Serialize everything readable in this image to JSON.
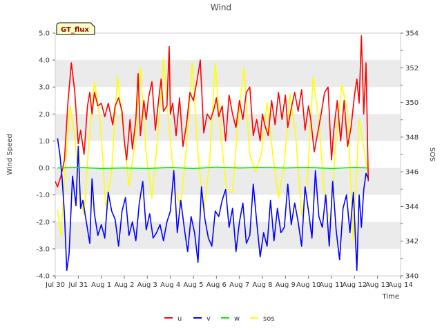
{
  "chart_data": {
    "type": "line",
    "title": "Wind",
    "badge": "GT_flux",
    "xlabel": "Time",
    "ylabel": "Wind Speed",
    "y2label": "SOS",
    "x_tick_labels": [
      "Jul 30",
      "Jul 31",
      "Aug 1",
      "Aug 2",
      "Aug 3",
      "Aug 4",
      "Aug 5",
      "Aug 6",
      "Aug 7",
      "Aug 8",
      "Aug 9",
      "Aug 10",
      "Aug 11",
      "Aug 12",
      "Aug 13",
      "Aug 14"
    ],
    "xlim": [
      0,
      15
    ],
    "ylim": [
      -4.0,
      5.0
    ],
    "y_ticks": [
      "-4.0",
      "-3.0",
      "-2.0",
      "-1.0",
      "0.0",
      "1.0",
      "2.0",
      "3.0",
      "4.0",
      "5.0"
    ],
    "y2lim": [
      340,
      354
    ],
    "y2_ticks": [
      "340",
      "342",
      "344",
      "346",
      "348",
      "350",
      "352",
      "354"
    ],
    "grid": "horizontal bands",
    "legend_position": "bottom-center",
    "colors": {
      "u": "#ff0000",
      "v": "#0000ff",
      "w": "#00ee00",
      "sos": "#ffff00",
      "band": "#ebebeb"
    },
    "series": [
      {
        "name": "u",
        "axis": "left",
        "x": [
          0.0,
          0.1,
          0.25,
          0.4,
          0.55,
          0.7,
          0.85,
          1.0,
          1.1,
          1.25,
          1.4,
          1.5,
          1.6,
          1.7,
          1.85,
          2.0,
          2.15,
          2.3,
          2.5,
          2.6,
          2.75,
          2.9,
          3.0,
          3.1,
          3.25,
          3.35,
          3.5,
          3.6,
          3.7,
          3.85,
          3.95,
          4.05,
          4.2,
          4.35,
          4.5,
          4.6,
          4.7,
          4.85,
          4.95,
          5.0,
          5.1,
          5.25,
          5.4,
          5.55,
          5.7,
          5.85,
          6.0,
          6.15,
          6.3,
          6.45,
          6.6,
          6.75,
          6.9,
          7.0,
          7.1,
          7.25,
          7.4,
          7.55,
          7.7,
          7.85,
          8.0,
          8.15,
          8.3,
          8.45,
          8.6,
          8.75,
          8.9,
          9.0,
          9.1,
          9.25,
          9.4,
          9.55,
          9.7,
          9.85,
          10.0,
          10.1,
          10.25,
          10.4,
          10.55,
          10.7,
          10.85,
          11.0,
          11.1,
          11.25,
          11.4,
          11.55,
          11.7,
          11.85,
          12.0,
          12.1,
          12.25,
          12.4,
          12.55,
          12.7,
          12.85,
          13.0,
          13.1,
          13.2,
          13.3,
          13.4,
          13.5,
          13.6
        ],
        "values": [
          -0.5,
          -0.7,
          -0.3,
          0.3,
          2.4,
          3.9,
          2.8,
          0.9,
          1.4,
          0.5,
          2.3,
          2.8,
          2.0,
          2.8,
          2.3,
          2.4,
          1.9,
          2.4,
          1.6,
          2.3,
          2.6,
          2.1,
          1.0,
          0.3,
          1.8,
          0.7,
          1.8,
          3.5,
          1.2,
          2.5,
          1.8,
          2.6,
          3.2,
          1.4,
          2.6,
          3.3,
          2.1,
          2.3,
          4.5,
          2.0,
          2.4,
          1.2,
          2.6,
          0.8,
          1.6,
          2.8,
          2.5,
          3.2,
          4.0,
          1.3,
          2.0,
          1.8,
          2.2,
          2.6,
          1.9,
          2.3,
          1.0,
          2.7,
          2.0,
          1.5,
          2.5,
          1.8,
          2.8,
          3.0,
          1.2,
          1.8,
          1.0,
          2.0,
          1.6,
          1.2,
          2.5,
          1.6,
          2.8,
          1.8,
          2.7,
          1.5,
          2.2,
          2.8,
          2.1,
          2.9,
          1.4,
          2.3,
          1.8,
          0.6,
          1.3,
          2.0,
          2.8,
          3.0,
          0.3,
          1.4,
          2.5,
          1.0,
          2.5,
          0.8,
          1.5,
          2.7,
          3.3,
          2.4,
          4.9,
          2.0,
          3.9,
          -0.5
        ]
      },
      {
        "name": "v",
        "axis": "left",
        "x": [
          0.1,
          0.2,
          0.3,
          0.4,
          0.5,
          0.6,
          0.75,
          0.9,
          1.0,
          1.1,
          1.2,
          1.35,
          1.5,
          1.6,
          1.7,
          1.85,
          2.0,
          2.15,
          2.3,
          2.45,
          2.6,
          2.75,
          2.9,
          3.05,
          3.2,
          3.35,
          3.5,
          3.65,
          3.8,
          3.95,
          4.1,
          4.25,
          4.4,
          4.55,
          4.7,
          4.85,
          5.0,
          5.15,
          5.3,
          5.45,
          5.6,
          5.75,
          5.9,
          6.05,
          6.2,
          6.35,
          6.5,
          6.65,
          6.8,
          6.95,
          7.1,
          7.25,
          7.4,
          7.55,
          7.7,
          7.85,
          8.0,
          8.15,
          8.3,
          8.45,
          8.6,
          8.75,
          8.9,
          9.05,
          9.2,
          9.35,
          9.5,
          9.65,
          9.8,
          9.95,
          10.1,
          10.25,
          10.4,
          10.55,
          10.7,
          10.85,
          11.0,
          11.15,
          11.3,
          11.45,
          11.6,
          11.75,
          11.9,
          12.05,
          12.2,
          12.35,
          12.5,
          12.65,
          12.8,
          12.95,
          13.1,
          13.2,
          13.3,
          13.4,
          13.5,
          13.6
        ],
        "values": [
          1.1,
          0.5,
          -0.4,
          -1.7,
          -3.8,
          -3.2,
          -0.3,
          -1.4,
          0.8,
          -1.5,
          -1.2,
          -2.0,
          -2.8,
          -0.4,
          -1.7,
          -2.5,
          -2.1,
          -2.6,
          -0.9,
          -1.6,
          -1.9,
          -2.9,
          -1.6,
          -1.1,
          -2.5,
          -2.0,
          -2.7,
          -1.3,
          -0.5,
          -2.3,
          -1.7,
          -2.6,
          -2.4,
          -2.1,
          -2.7,
          -2.0,
          -1.6,
          -0.1,
          -2.4,
          -1.2,
          -2.2,
          -3.1,
          -1.8,
          -2.4,
          -3.5,
          -0.7,
          -1.9,
          -2.6,
          -2.9,
          -1.6,
          -1.8,
          -1.2,
          -0.8,
          -2.2,
          -1.5,
          -3.1,
          -2.0,
          -1.3,
          -2.8,
          -2.5,
          -0.6,
          -2.0,
          -3.3,
          -2.4,
          -2.9,
          -1.2,
          -2.7,
          -1.5,
          -2.4,
          -2.2,
          -0.6,
          -2.1,
          -1.3,
          -2.0,
          -2.9,
          -0.7,
          -1.6,
          -2.6,
          -0.1,
          -1.8,
          -2.2,
          -1.0,
          -2.9,
          -0.5,
          -2.3,
          -3.4,
          -1.5,
          -1.0,
          -2.4,
          -0.9,
          -3.8,
          -1.0,
          -2.2,
          -0.8,
          -0.2,
          -0.4
        ]
      },
      {
        "name": "w",
        "axis": "left",
        "x": [
          0.1,
          1.0,
          2.0,
          3.0,
          4.0,
          5.0,
          6.0,
          7.0,
          8.0,
          9.0,
          10.0,
          11.0,
          12.0,
          13.0,
          13.6
        ],
        "values": [
          0.0,
          0.02,
          -0.02,
          0.0,
          -0.02,
          0.02,
          -0.02,
          0.03,
          0.0,
          0.02,
          0.0,
          0.02,
          -0.02,
          0.02,
          0.0
        ]
      },
      {
        "name": "sos",
        "axis": "right",
        "x": [
          0.1,
          0.25,
          0.45,
          0.65,
          0.85,
          1.05,
          1.25,
          1.45,
          1.7,
          1.95,
          2.2,
          2.45,
          2.7,
          2.95,
          3.2,
          3.45,
          3.7,
          3.95,
          4.2,
          4.45,
          4.7,
          4.95,
          5.2,
          5.45,
          5.7,
          5.95,
          6.2,
          6.45,
          6.7,
          6.95,
          7.2,
          7.45,
          7.7,
          7.95,
          8.2,
          8.45,
          8.7,
          8.95,
          9.2,
          9.45,
          9.7,
          9.95,
          10.2,
          10.45,
          10.7,
          10.95,
          11.2,
          11.45,
          11.7,
          11.95,
          12.2,
          12.45,
          12.7,
          12.95,
          13.2,
          13.45,
          13.6
        ],
        "values": [
          343.8,
          342.3,
          346.5,
          349.8,
          348.0,
          345.0,
          343.5,
          347.5,
          351.2,
          349.0,
          344.0,
          346.0,
          351.5,
          348.5,
          345.2,
          347.5,
          352.0,
          347.0,
          344.5,
          348.0,
          352.5,
          348.5,
          345.0,
          344.0,
          347.5,
          352.3,
          347.0,
          343.7,
          346.5,
          352.3,
          348.0,
          345.0,
          344.8,
          349.0,
          352.0,
          347.0,
          346.0,
          347.0,
          350.0,
          347.0,
          344.5,
          346.5,
          350.5,
          348.0,
          343.5,
          345.5,
          351.5,
          349.0,
          344.5,
          343.0,
          348.0,
          351.0,
          349.5,
          342.0,
          349.0,
          347.0,
          345.8
        ]
      }
    ]
  }
}
